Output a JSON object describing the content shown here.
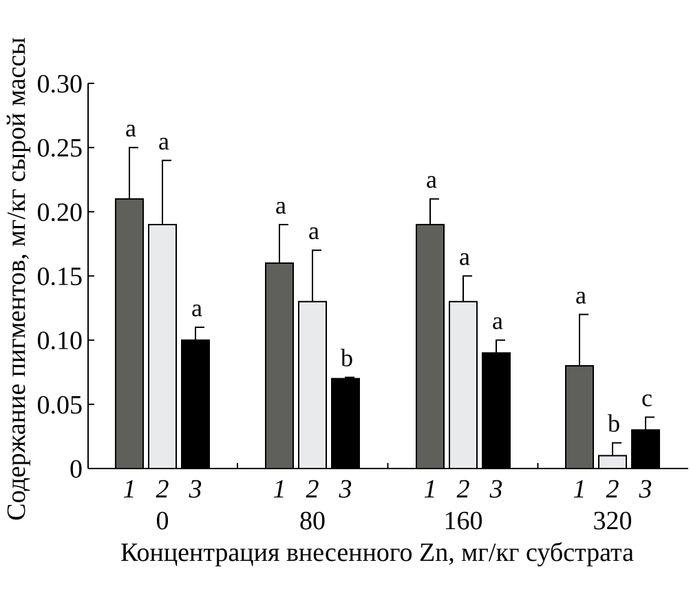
{
  "chart_data": {
    "type": "bar",
    "ylabel": "Содержание пигментов, мг/кг сырой массы",
    "xlabel": "Концентрация внесенного Zn, мг/кг субстрата",
    "ylim": [
      0,
      0.3
    ],
    "yticks": [
      {
        "value": 0,
        "label": "0"
      },
      {
        "value": 0.05,
        "label": "0.05"
      },
      {
        "value": 0.1,
        "label": "0.10"
      },
      {
        "value": 0.15,
        "label": "0.15"
      },
      {
        "value": 0.2,
        "label": "0.20"
      },
      {
        "value": 0.25,
        "label": "0.25"
      },
      {
        "value": 0.3,
        "label": "0.30"
      }
    ],
    "categories": [
      "0",
      "80",
      "160",
      "320"
    ],
    "series": [
      {
        "index_label": "1",
        "color": "#5f605c",
        "values": [
          0.21,
          0.16,
          0.19,
          0.08
        ],
        "errors": [
          0.04,
          0.03,
          0.02,
          0.04
        ],
        "significance": [
          "a",
          "a",
          "a",
          "a"
        ]
      },
      {
        "index_label": "2",
        "color": "#e9eaec",
        "values": [
          0.19,
          0.13,
          0.13,
          0.01
        ],
        "errors": [
          0.05,
          0.04,
          0.02,
          0.01
        ],
        "significance": [
          "a",
          "a",
          "a",
          "b"
        ]
      },
      {
        "index_label": "3",
        "color": "#000000",
        "values": [
          0.1,
          0.07,
          0.09,
          0.03
        ],
        "errors": [
          0.01,
          0.001,
          0.01,
          0.01
        ],
        "significance": [
          "a",
          "b",
          "a",
          "c"
        ]
      }
    ],
    "grid": false,
    "legend": "none"
  }
}
